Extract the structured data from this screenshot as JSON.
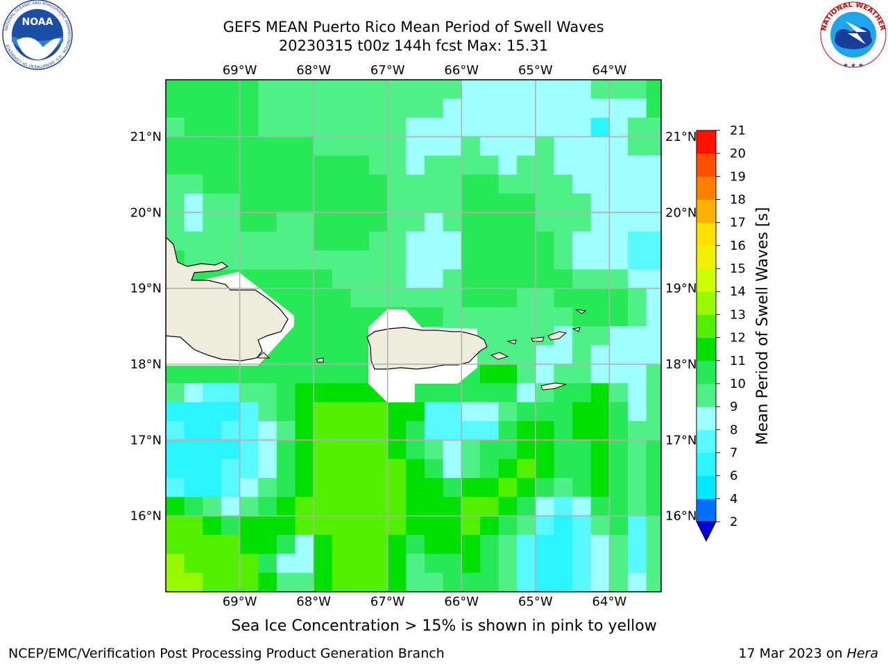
{
  "header": {
    "title_line1": "GEFS MEAN Puerto Rico Mean Period of Swell Waves",
    "title_line2": "20230315 t00z 144h fcst   Max: 15.31"
  },
  "logos": {
    "left": {
      "name": "NOAA",
      "ring_text": "NATIONAL OCEANIC AND ATMOSPHERIC ADMINISTRATION · U.S. DEPARTMENT OF COMMERCE"
    },
    "right": {
      "name": "NATIONAL WEATHER SERVICE"
    }
  },
  "note": "Sea Ice Concentration > 15% is shown in pink to yellow",
  "footer": {
    "left": "NCEP/EMC/Verification Post Processing Product Generation Branch",
    "right_prefix": "17 Mar 2023 on ",
    "right_host": "Hera"
  },
  "chart_data": {
    "type": "heatmap",
    "title": "GEFS MEAN Puerto Rico Mean Period of Swell Waves",
    "subtitle": "20230315 t00z 144h fcst   Max: 15.31",
    "x_ticks": [
      "69°W",
      "68°W",
      "67°W",
      "66°W",
      "65°W",
      "64°W"
    ],
    "x_tick_values": [
      -69,
      -68,
      -67,
      -66,
      -65,
      -64
    ],
    "y_ticks": [
      "21°N",
      "20°N",
      "19°N",
      "18°N",
      "17°N",
      "16°N"
    ],
    "y_tick_values": [
      21,
      20,
      19,
      18,
      17,
      16
    ],
    "xlim": [
      -70.0,
      -63.3
    ],
    "ylim": [
      15.0,
      21.75
    ],
    "grid": true,
    "max_value": 15.31,
    "colorbar": {
      "label": "Mean Period of Swell Waves [s]",
      "levels": [
        2,
        4,
        6,
        7,
        8,
        9,
        10,
        11,
        12,
        13,
        14,
        15,
        16,
        17,
        18,
        19,
        20,
        21
      ],
      "tick_labels": [
        "2",
        "4",
        "6",
        "7",
        "8",
        "9",
        "10",
        "11",
        "12",
        "13",
        "14",
        "15",
        "16",
        "17",
        "18",
        "19",
        "20",
        "21"
      ],
      "colors": [
        "#0000e0",
        "#0070ff",
        "#00e8ff",
        "#2af4ff",
        "#58f8ff",
        "#a0ffff",
        "#50f088",
        "#28e858",
        "#00e000",
        "#50f000",
        "#98f800",
        "#ccff00",
        "#f0f000",
        "#ffe000",
        "#ffb000",
        "#ff8000",
        "#ff5000",
        "#ff1000"
      ],
      "extend": "min"
    },
    "field_grid": {
      "lon_start": -70.0,
      "lon_step": 0.25,
      "lat_start": 21.75,
      "lat_step": -0.25,
      "cols": 29,
      "rows": 27,
      "values": [
        [
          11,
          11,
          11,
          11,
          11,
          10,
          10,
          10,
          10,
          10,
          10,
          10,
          10,
          10,
          10,
          10,
          9,
          9,
          9,
          9,
          9,
          9,
          9,
          10,
          10,
          10,
          11,
          11,
          11
        ],
        [
          11,
          11,
          11,
          11,
          11,
          10,
          10,
          10,
          10,
          10,
          10,
          10,
          10,
          10,
          10,
          9,
          9,
          9,
          9,
          9,
          9,
          9,
          9,
          9,
          9,
          9,
          11,
          11,
          11
        ],
        [
          10,
          11,
          11,
          11,
          11,
          10,
          10,
          10,
          10,
          10,
          10,
          10,
          10,
          9,
          9,
          9,
          9,
          9,
          9,
          9,
          9,
          9,
          9,
          7,
          9,
          10,
          10,
          11,
          11
        ],
        [
          11,
          11,
          11,
          11,
          11,
          11,
          11,
          11,
          10,
          10,
          10,
          10,
          10,
          9,
          9,
          9,
          10,
          9,
          9,
          9,
          10,
          9,
          9,
          9,
          9,
          10,
          10,
          10,
          10
        ],
        [
          11,
          11,
          11,
          11,
          11,
          11,
          11,
          11,
          11,
          11,
          11,
          10,
          10,
          9,
          10,
          10,
          10,
          10,
          9,
          10,
          10,
          9,
          9,
          9,
          9,
          9,
          9,
          10,
          10
        ],
        [
          10,
          10,
          11,
          11,
          11,
          11,
          11,
          11,
          11,
          11,
          11,
          11,
          10,
          10,
          10,
          10,
          11,
          11,
          10,
          10,
          10,
          10,
          9,
          9,
          9,
          9,
          9,
          10,
          10
        ],
        [
          10,
          9,
          10,
          10,
          11,
          11,
          11,
          11,
          11,
          11,
          11,
          11,
          10,
          10,
          10,
          10,
          11,
          11,
          11,
          11,
          10,
          10,
          10,
          9,
          9,
          9,
          9,
          9,
          10
        ],
        [
          10,
          9,
          10,
          10,
          11,
          11,
          10,
          10,
          11,
          11,
          11,
          11,
          10,
          10,
          9,
          10,
          11,
          11,
          11,
          11,
          10,
          10,
          10,
          9,
          9,
          9,
          9,
          9,
          9
        ],
        [
          10,
          10,
          10,
          10,
          10,
          10,
          10,
          10,
          11,
          11,
          11,
          10,
          10,
          9,
          9,
          9,
          11,
          11,
          11,
          11,
          11,
          10,
          9,
          9,
          9,
          8,
          8,
          8,
          9
        ],
        [
          11,
          10,
          10,
          10,
          10,
          10,
          10,
          10,
          10,
          10,
          10,
          10,
          10,
          9,
          9,
          9,
          11,
          11,
          11,
          11,
          11,
          10,
          9,
          9,
          9,
          8,
          8,
          8,
          9
        ],
        [
          11,
          11,
          11,
          11,
          11,
          11,
          11,
          11,
          11,
          10,
          10,
          10,
          10,
          9,
          9,
          10,
          11,
          11,
          11,
          11,
          11,
          11,
          10,
          10,
          10,
          9,
          9,
          9,
          10
        ],
        [
          11,
          11,
          11,
          11,
          11,
          11,
          11,
          11,
          11,
          11,
          10,
          10,
          10,
          10,
          10,
          10,
          11,
          11,
          11,
          10,
          10,
          11,
          11,
          11,
          11,
          10,
          9,
          9,
          10
        ],
        [
          11,
          11,
          11,
          11,
          11,
          11,
          11,
          11,
          11,
          11,
          11,
          11,
          11,
          11,
          11,
          10,
          10,
          10,
          10,
          10,
          10,
          10,
          11,
          11,
          11,
          10,
          9,
          10,
          10
        ],
        [
          11,
          11,
          11,
          11,
          11,
          11,
          11,
          11,
          11,
          11,
          11,
          11,
          11,
          11,
          10,
          10,
          10,
          10,
          10,
          10,
          10,
          9,
          10,
          10,
          9,
          9,
          9,
          9,
          10
        ],
        [
          11,
          11,
          11,
          11,
          11,
          11,
          11,
          11,
          11,
          11,
          11,
          10,
          11,
          10,
          10,
          10,
          10,
          10,
          10,
          10,
          9,
          9,
          10,
          9,
          9,
          9,
          9,
          10,
          10
        ],
        [
          11,
          11,
          11,
          11,
          11,
          11,
          11,
          11,
          11,
          11,
          11,
          10,
          11,
          11,
          11,
          11,
          11,
          12,
          12,
          10,
          9,
          10,
          10,
          9,
          9,
          9,
          10,
          10,
          11
        ],
        [
          10,
          9,
          8,
          8,
          10,
          10,
          11,
          12,
          12,
          12,
          12,
          12,
          11,
          11,
          11,
          11,
          11,
          11,
          11,
          9,
          10,
          11,
          11,
          12,
          10,
          9,
          10,
          10,
          11
        ],
        [
          7,
          7,
          7,
          7,
          8,
          10,
          11,
          12,
          13,
          13,
          13,
          13,
          12,
          12,
          8,
          8,
          9,
          9,
          10,
          11,
          11,
          11,
          12,
          12,
          11,
          9,
          10,
          10,
          11
        ],
        [
          8,
          7,
          7,
          8,
          8,
          9,
          10,
          12,
          13,
          13,
          13,
          13,
          12,
          11,
          8,
          8,
          8,
          8,
          11,
          12,
          12,
          11,
          12,
          12,
          11,
          10,
          10,
          10,
          11
        ],
        [
          7,
          7,
          7,
          7,
          8,
          9,
          11,
          12,
          13,
          13,
          13,
          13,
          12,
          11,
          10,
          9,
          10,
          11,
          11,
          12,
          12,
          11,
          11,
          12,
          11,
          10,
          11,
          11,
          11
        ],
        [
          7,
          7,
          7,
          8,
          8,
          9,
          11,
          12,
          13,
          13,
          13,
          13,
          13,
          12,
          11,
          9,
          10,
          11,
          12,
          13,
          12,
          11,
          11,
          12,
          11,
          10,
          11,
          11,
          11
        ],
        [
          8,
          7,
          7,
          8,
          9,
          10,
          11,
          12,
          13,
          13,
          13,
          13,
          13,
          12,
          12,
          11,
          12,
          12,
          13,
          12,
          11,
          10,
          11,
          12,
          11,
          10,
          11,
          11,
          11
        ],
        [
          12,
          11,
          10,
          9,
          10,
          11,
          12,
          13,
          13,
          13,
          13,
          13,
          13,
          12,
          12,
          12,
          13,
          13,
          12,
          11,
          9,
          8,
          9,
          11,
          11,
          10,
          11,
          11,
          11
        ],
        [
          13,
          13,
          12,
          11,
          12,
          12,
          12,
          13,
          13,
          13,
          13,
          13,
          13,
          12,
          12,
          12,
          13,
          12,
          11,
          10,
          8,
          7,
          8,
          10,
          11,
          8,
          10,
          11,
          11
        ],
        [
          13,
          13,
          13,
          13,
          12,
          12,
          11,
          9,
          12,
          13,
          13,
          13,
          12,
          11,
          12,
          12,
          12,
          11,
          10,
          8,
          7,
          7,
          8,
          9,
          10,
          8,
          10,
          11,
          11
        ],
        [
          14,
          13,
          13,
          13,
          13,
          11,
          9,
          9,
          12,
          13,
          13,
          13,
          12,
          10,
          11,
          11,
          12,
          11,
          10,
          8,
          7,
          7,
          8,
          9,
          10,
          8,
          10,
          11,
          12
        ],
        [
          14,
          14,
          13,
          13,
          13,
          12,
          10,
          10,
          12,
          13,
          13,
          13,
          12,
          10,
          10,
          11,
          11,
          11,
          10,
          8,
          7,
          7,
          8,
          9,
          10,
          9,
          10,
          11,
          12
        ]
      ]
    },
    "land_masks": [
      "Hispaniola",
      "Puerto Rico",
      "Virgin Islands"
    ]
  }
}
